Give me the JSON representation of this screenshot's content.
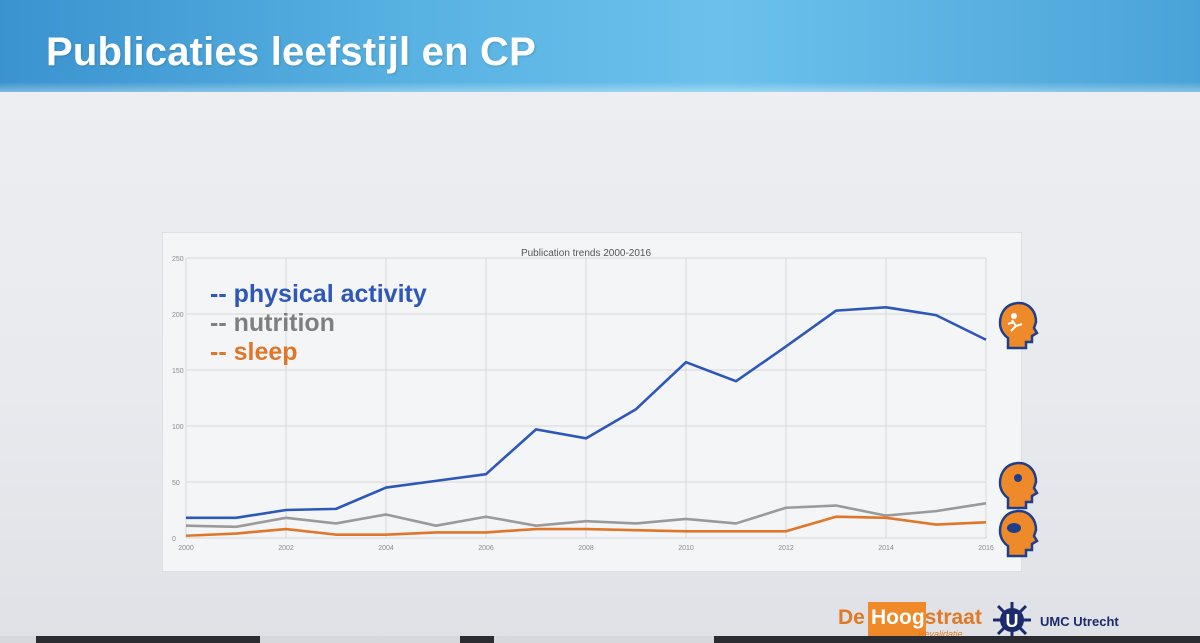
{
  "slide": {
    "title": "Publicaties leefstijl en CP"
  },
  "legend": {
    "items": [
      {
        "text": "-- physical activity",
        "color": "#2d57b8"
      },
      {
        "text": "-- nutrition",
        "color": "#7f7f7f"
      },
      {
        "text": "-- sleep",
        "color": "#e0762a"
      }
    ]
  },
  "logos": {
    "hoogstraat": {
      "de": "De",
      "name_a": "Hoog",
      "name_b": "straat",
      "sub": "Revalidatie"
    },
    "umc": {
      "u": "U",
      "name": "UMC Utrecht"
    }
  },
  "chart_data": {
    "type": "line",
    "title": "Publication trends 2000-2016",
    "xlabel": "",
    "ylabel": "",
    "ylim": [
      0,
      250
    ],
    "yticks": [
      0,
      50,
      100,
      150,
      200,
      250
    ],
    "xticks": [
      2000,
      2002,
      2004,
      2006,
      2008,
      2010,
      2012,
      2014,
      2016
    ],
    "x": [
      2000,
      2001,
      2002,
      2003,
      2004,
      2005,
      2006,
      2007,
      2008,
      2009,
      2010,
      2011,
      2012,
      2013,
      2014,
      2015,
      2016
    ],
    "grid": true,
    "legend": "top-left",
    "series": [
      {
        "name": "physical activity",
        "color": "#2d57b8",
        "values": [
          18,
          18,
          25,
          26,
          45,
          51,
          57,
          97,
          89,
          115,
          157,
          140,
          171,
          203,
          206,
          199,
          177
        ]
      },
      {
        "name": "nutrition",
        "color": "#9a9a9a",
        "values": [
          11,
          10,
          18,
          13,
          21,
          11,
          19,
          11,
          15,
          13,
          17,
          13,
          27,
          29,
          20,
          24,
          31
        ]
      },
      {
        "name": "sleep",
        "color": "#e0762a",
        "values": [
          2,
          4,
          8,
          3,
          3,
          5,
          5,
          8,
          8,
          7,
          6,
          6,
          6,
          19,
          18,
          12,
          14
        ]
      }
    ]
  }
}
